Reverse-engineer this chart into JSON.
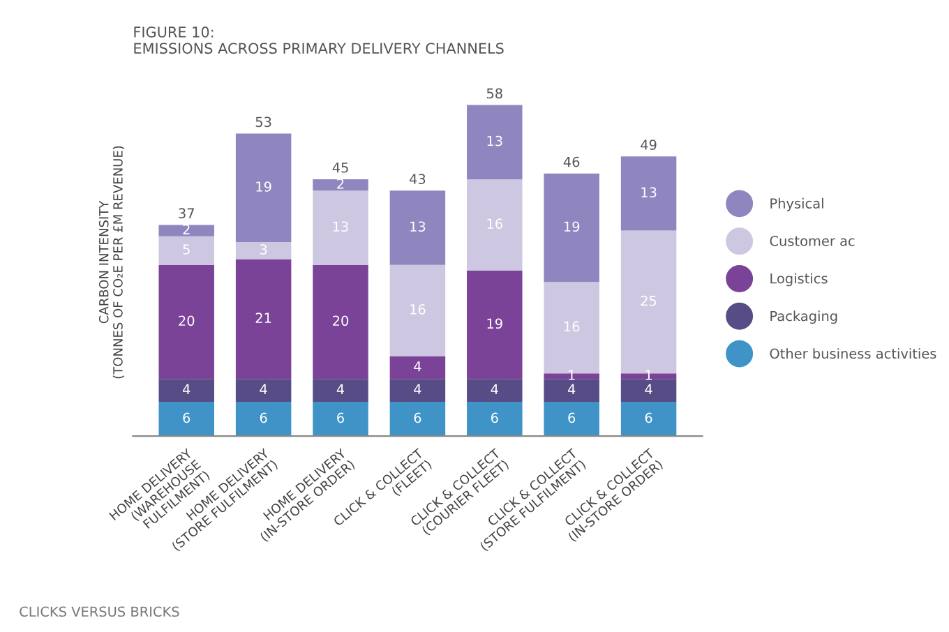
{
  "chart_data": {
    "type": "bar",
    "stacked": true,
    "title": "FIGURE 10:\nEMISSIONS ACROSS PRIMARY DELIVERY CHANNELS",
    "ylabel": "CARBON INTENSITY\n(TONNES OF CO₂E PER £M REVENUE)",
    "categories": [
      "HOME DELIVERY\n(WAREHOUSE\nFULFILMENT)",
      "HOME DELIVERY\n(STORE FULFILMENT)",
      "HOME DELIVERY\n(IN-STORE ORDER)",
      "CLICK & COLLECT\n(FLEET)",
      "CLICK & COLLECT\n(COURIER FLEET)",
      "CLICK & COLLECT\n(STORE FULFILMENT)",
      "CLICK & COLLECT\n(IN-STORE ORDER)"
    ],
    "series": [
      {
        "name": "Other business activities",
        "color": "#3f93c6",
        "values": [
          6,
          6,
          6,
          6,
          6,
          6,
          6
        ]
      },
      {
        "name": "Packaging",
        "color": "#574c85",
        "values": [
          4,
          4,
          4,
          4,
          4,
          4,
          4
        ]
      },
      {
        "name": "Logistics",
        "color": "#7b4398",
        "values": [
          20,
          21,
          20,
          4,
          19,
          1,
          1
        ]
      },
      {
        "name": "Customer ac",
        "color": "#cdc7e2",
        "values": [
          5,
          3,
          13,
          16,
          16,
          16,
          25
        ]
      },
      {
        "name": "Physical",
        "color": "#8f86bf",
        "values": [
          2,
          19,
          2,
          13,
          13,
          19,
          13
        ]
      }
    ],
    "data_labels": true,
    "totals": [
      "37",
      "53",
      "45",
      "43",
      "58",
      "46",
      "49"
    ],
    "legend": "right",
    "tick_labels": "x",
    "annotations": [
      "CLICKS VERSUS BRICKS"
    ]
  }
}
